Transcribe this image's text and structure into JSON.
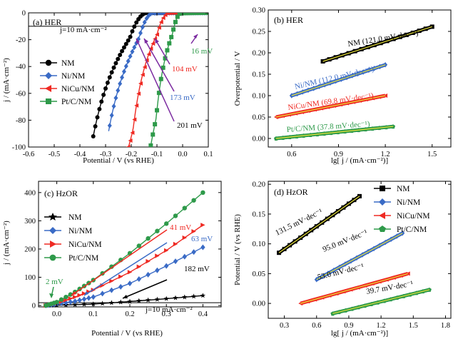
{
  "chart_data": [
    {
      "id": "a",
      "type": "line",
      "title": "(a) HER",
      "xlabel": "Potential / V (vs RHE)",
      "ylabel": "j / (mA·cm⁻²)",
      "xlim": [
        -0.6,
        0.1
      ],
      "ylim": [
        -100,
        0
      ],
      "xticks": [
        "-0.6",
        "-0.5",
        "-0.4",
        "-0.3",
        "-0.2",
        "-0.1",
        "0.0",
        "0.1"
      ],
      "yticks": [
        "0",
        "-20",
        "-40",
        "-60",
        "-80",
        "-100"
      ],
      "reference_line": {
        "y": -10,
        "label": "j=10 mA·cm⁻²"
      },
      "legend": "left-middle",
      "series": [
        {
          "name": "NM",
          "color": "#000000",
          "marker": "circle",
          "onset": -0.14,
          "tafel": 0.056,
          "width": 0.065,
          "xmin": -0.34
        },
        {
          "name": "Ni/NM",
          "color": "#3a6bc6",
          "marker": "diamond",
          "onset": -0.115,
          "tafel": 0.048,
          "width": 0.055,
          "xmin": -0.28
        },
        {
          "name": "NiCu/NM",
          "color": "#ef2a23",
          "marker": "triangle-left",
          "onset": -0.055,
          "tafel": 0.036,
          "width": 0.045,
          "xmin": -0.22
        },
        {
          "name": "Pt/C/NM",
          "color": "#2e9a4a",
          "marker": "square",
          "onset": -0.006,
          "tafel": 0.026,
          "width": 0.034,
          "xmin": -0.135
        }
      ],
      "annotations": [
        {
          "text": "16 mV",
          "color": "#2e9a4a"
        },
        {
          "text": "104 mV",
          "color": "#ef2a23"
        },
        {
          "text": "173 mV",
          "color": "#3a6bc6"
        },
        {
          "text": "201 mV",
          "color": "#000000"
        }
      ]
    },
    {
      "id": "b",
      "type": "line",
      "title": "(b) HER",
      "xlabel": "lg[ j / (mA·cm⁻²)]",
      "ylabel": "Overpotential / V",
      "xlim": [
        0.45,
        1.62
      ],
      "ylim": [
        -0.02,
        0.3
      ],
      "xticks": [
        "0.6",
        "0.9",
        "1.2",
        "1.5"
      ],
      "yticks": [
        "0.00",
        "0.05",
        "0.10",
        "0.15",
        "0.20",
        "0.25",
        "0.30"
      ],
      "series": [
        {
          "name": "NM",
          "color": "#000000",
          "marker": "square",
          "x": [
            0.8,
            1.5
          ],
          "y": [
            0.18,
            0.261
          ]
        },
        {
          "name": "Ni/NM",
          "color": "#3a6bc6",
          "marker": "diamond",
          "x": [
            0.6,
            1.2
          ],
          "y": [
            0.1,
            0.172
          ]
        },
        {
          "name": "NiCu/NM",
          "color": "#ef2a23",
          "marker": "triangle-left",
          "x": [
            0.5,
            1.2
          ],
          "y": [
            0.05,
            0.1
          ]
        },
        {
          "name": "Pt/C/NM",
          "color": "#2e9a4a",
          "marker": "pentagon",
          "x": [
            0.5,
            1.25
          ],
          "y": [
            0.0,
            0.028
          ]
        }
      ],
      "fit_color": "#e8e23a",
      "labels": [
        {
          "text": "NM (121.0 mV·dec⁻¹)",
          "color": "#000000"
        },
        {
          "text": "Ni/NM (112.0 mV·dec⁻¹)",
          "color": "#3a6bc6"
        },
        {
          "text": "NiCu/NM (69.8 mV·dec⁻¹)",
          "color": "#ef2a23"
        },
        {
          "text": "Pt/C/NM (37.8 mV·dec⁻¹)",
          "color": "#2e9a4a"
        }
      ]
    },
    {
      "id": "c",
      "type": "line",
      "title": "(c) HzOR",
      "xlabel": "Potential / V (vs RHE)",
      "ylabel": "j / (mA·cm⁻²)",
      "xlim": [
        -0.05,
        0.45
      ],
      "ylim": [
        -5,
        440
      ],
      "xticks": [
        "0.0",
        "0.1",
        "0.2",
        "0.3",
        "0.4"
      ],
      "yticks": [
        "0",
        "100",
        "200",
        "300",
        "400"
      ],
      "reference_line": {
        "y": 10,
        "label": "j=10 mA·cm⁻²"
      },
      "legend": "left-middle",
      "series": [
        {
          "name": "NM",
          "color": "#000000",
          "marker": "star",
          "x": [
            -0.03,
            0.0,
            0.1,
            0.2,
            0.3,
            0.4
          ],
          "y": [
            0,
            1,
            5,
            14,
            24,
            35
          ]
        },
        {
          "name": "Ni/NM",
          "color": "#3a6bc6",
          "marker": "diamond",
          "x": [
            -0.03,
            0.0,
            0.05,
            0.1,
            0.2,
            0.3,
            0.4
          ],
          "y": [
            0,
            5,
            15,
            30,
            78,
            140,
            206
          ]
        },
        {
          "name": "NiCu/NM",
          "color": "#ef2a23",
          "marker": "triangle-right",
          "x": [
            -0.03,
            0.0,
            0.05,
            0.1,
            0.2,
            0.3,
            0.4
          ],
          "y": [
            0,
            8,
            30,
            55,
            118,
            195,
            285
          ]
        },
        {
          "name": "Pt/C/NM",
          "color": "#2e9a4a",
          "marker": "circle",
          "x": [
            -0.03,
            0.0,
            0.05,
            0.1,
            0.2,
            0.3,
            0.4
          ],
          "y": [
            0,
            12,
            48,
            90,
            185,
            290,
            400
          ]
        }
      ],
      "annotations": [
        {
          "text": "2 mV",
          "color": "#2e9a4a"
        },
        {
          "text": "41 mV",
          "color": "#ef2a23"
        },
        {
          "text": "63 mV",
          "color": "#3a6bc6"
        },
        {
          "text": "182 mV",
          "color": "#000000"
        }
      ]
    },
    {
      "id": "d",
      "type": "line",
      "title": "(d) HzOR",
      "xlabel": "lg[ j / (mA·cm⁻²)]",
      "ylabel": "Potential / V (vs RHE)",
      "xlim": [
        0.15,
        1.85
      ],
      "ylim": [
        -0.025,
        0.205
      ],
      "xticks": [
        "0.3",
        "0.6",
        "0.9",
        "1.2",
        "1.5",
        "1.8"
      ],
      "yticks": [
        "0.00",
        "0.05",
        "0.10",
        "0.15",
        "0.20"
      ],
      "legend": "top-right",
      "series": [
        {
          "name": "NM",
          "color": "#000000",
          "marker": "square",
          "x": [
            0.25,
            1.0
          ],
          "y": [
            0.085,
            0.18
          ]
        },
        {
          "name": "Ni/NM",
          "color": "#3a6bc6",
          "marker": "diamond",
          "x": [
            0.6,
            1.4
          ],
          "y": [
            0.04,
            0.118
          ]
        },
        {
          "name": "NiCu/NM",
          "color": "#ef2a23",
          "marker": "triangle-left",
          "x": [
            0.45,
            1.45
          ],
          "y": [
            0.0,
            0.05
          ]
        },
        {
          "name": "Pt/C/NM",
          "color": "#2e9a4a",
          "marker": "pentagon",
          "x": [
            0.75,
            1.65
          ],
          "y": [
            -0.017,
            0.023
          ]
        }
      ],
      "fit_color": "#e8e23a",
      "labels": [
        {
          "text": "131.5 mV·dec⁻¹",
          "color": "#000000"
        },
        {
          "text": "95.0 mV·dec⁻¹",
          "color": "#000000"
        },
        {
          "text": "53.0 mV·dec⁻¹",
          "color": "#000000"
        },
        {
          "text": "39.7 mV·dec⁻¹",
          "color": "#000000"
        }
      ]
    }
  ]
}
